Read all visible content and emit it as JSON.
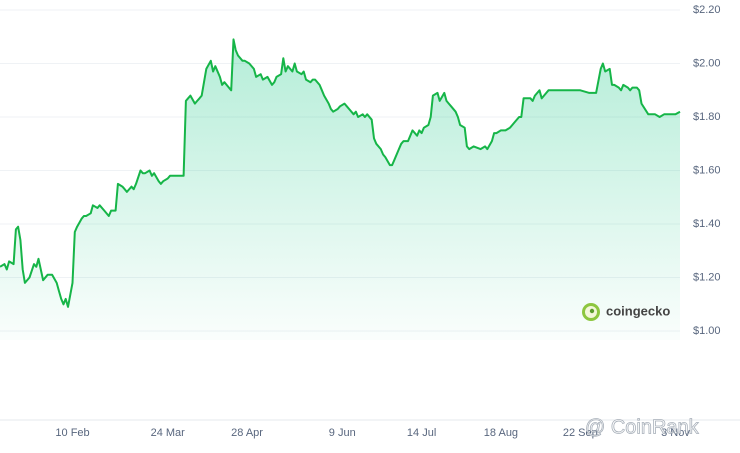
{
  "chart_data": {
    "type": "line",
    "x": [
      0,
      2,
      3,
      4,
      6,
      7,
      8,
      9,
      10,
      11,
      13,
      15,
      16,
      17,
      18,
      19,
      21,
      23,
      25,
      26,
      27,
      28,
      29,
      30,
      32,
      33,
      34,
      36,
      37,
      38,
      40,
      41,
      43,
      44,
      46,
      48,
      49,
      51,
      52,
      54,
      55,
      56,
      58,
      59,
      60,
      62,
      63,
      64,
      66,
      67,
      68,
      70,
      71,
      72,
      74,
      75,
      78,
      79,
      81,
      82,
      83,
      84,
      86,
      87,
      88,
      89,
      90,
      91,
      93,
      94,
      95,
      97,
      98,
      99,
      101,
      102,
      103,
      104,
      105,
      107,
      108,
      110,
      112,
      113,
      115,
      116,
      118,
      120,
      121,
      122,
      124,
      125,
      126,
      127,
      129,
      130,
      131,
      133,
      134,
      135,
      137,
      138,
      139,
      141,
      142,
      143,
      145,
      146,
      147,
      149,
      150,
      152,
      153,
      154,
      156,
      157,
      158,
      160,
      161,
      162,
      164,
      165,
      166,
      168,
      169,
      170,
      172,
      173,
      174,
      176,
      177,
      178,
      180,
      181,
      182,
      184,
      185,
      186,
      187,
      189,
      190,
      191,
      193,
      194,
      196,
      197,
      198,
      199,
      201,
      202,
      203,
      205,
      206,
      207,
      209,
      212,
      214,
      215,
      217,
      218,
      219,
      221,
      222,
      223,
      225,
      226,
      227,
      229,
      230,
      231,
      232,
      234,
      235,
      236,
      238,
      239,
      240,
      242,
      243,
      247,
      251,
      256,
      260,
      263,
      265,
      266,
      267,
      269,
      270,
      271,
      273,
      274,
      275,
      277,
      278,
      279,
      281,
      282,
      283,
      286,
      287,
      289,
      291,
      293,
      296,
      298,
      300
    ],
    "series": [
      {
        "color": "#16b548",
        "values": [
          1.24,
          1.25,
          1.23,
          1.26,
          1.25,
          1.38,
          1.39,
          1.34,
          1.23,
          1.18,
          1.2,
          1.25,
          1.24,
          1.27,
          1.23,
          1.19,
          1.21,
          1.21,
          1.18,
          1.15,
          1.12,
          1.1,
          1.12,
          1.09,
          1.18,
          1.37,
          1.39,
          1.42,
          1.43,
          1.43,
          1.44,
          1.47,
          1.46,
          1.47,
          1.45,
          1.43,
          1.45,
          1.45,
          1.55,
          1.54,
          1.53,
          1.52,
          1.54,
          1.53,
          1.55,
          1.6,
          1.59,
          1.59,
          1.6,
          1.58,
          1.59,
          1.56,
          1.55,
          1.56,
          1.57,
          1.58,
          1.58,
          1.58,
          1.58,
          1.86,
          1.87,
          1.88,
          1.85,
          1.86,
          1.87,
          1.88,
          1.93,
          1.98,
          2.01,
          1.97,
          1.99,
          1.95,
          1.92,
          1.93,
          1.91,
          1.9,
          2.09,
          2.05,
          2.03,
          2.01,
          2.01,
          2.0,
          1.98,
          1.95,
          1.96,
          1.94,
          1.95,
          1.92,
          1.93,
          1.95,
          1.96,
          2.02,
          1.97,
          1.99,
          1.97,
          2.0,
          1.97,
          1.96,
          1.97,
          1.94,
          1.93,
          1.94,
          1.94,
          1.92,
          1.9,
          1.88,
          1.85,
          1.83,
          1.82,
          1.83,
          1.84,
          1.85,
          1.84,
          1.83,
          1.81,
          1.82,
          1.8,
          1.81,
          1.8,
          1.81,
          1.79,
          1.72,
          1.7,
          1.68,
          1.66,
          1.65,
          1.62,
          1.62,
          1.64,
          1.68,
          1.7,
          1.71,
          1.71,
          1.73,
          1.75,
          1.73,
          1.75,
          1.74,
          1.76,
          1.77,
          1.8,
          1.88,
          1.89,
          1.86,
          1.89,
          1.86,
          1.85,
          1.84,
          1.82,
          1.8,
          1.77,
          1.76,
          1.69,
          1.68,
          1.69,
          1.68,
          1.69,
          1.68,
          1.71,
          1.74,
          1.74,
          1.75,
          1.75,
          1.75,
          1.76,
          1.77,
          1.78,
          1.8,
          1.8,
          1.87,
          1.87,
          1.87,
          1.86,
          1.88,
          1.9,
          1.87,
          1.88,
          1.9,
          1.9,
          1.9,
          1.9,
          1.9,
          1.89,
          1.89,
          1.98,
          2.0,
          1.97,
          1.98,
          1.92,
          1.92,
          1.91,
          1.9,
          1.92,
          1.91,
          1.9,
          1.91,
          1.91,
          1.9,
          1.85,
          1.81,
          1.81,
          1.81,
          1.8,
          1.81,
          1.81,
          1.81,
          1.82
        ]
      }
    ],
    "xlim": [
      0,
      300
    ],
    "xticks": [
      {
        "value": 32,
        "label": "10 Feb"
      },
      {
        "value": 74,
        "label": "24 Mar"
      },
      {
        "value": 109,
        "label": "28 Apr"
      },
      {
        "value": 151,
        "label": "9 Jun"
      },
      {
        "value": 186,
        "label": "14 Jul"
      },
      {
        "value": 221,
        "label": "18 Aug"
      },
      {
        "value": 256,
        "label": "22 Sep"
      },
      {
        "value": 298,
        "label": "3 Nov"
      }
    ],
    "ylim": [
      1.0,
      2.2
    ],
    "yticks": [
      {
        "value": 2.2,
        "label": "$2.20"
      },
      {
        "value": 2.0,
        "label": "$2.00"
      },
      {
        "value": 1.8,
        "label": "$1.80"
      },
      {
        "value": 1.6,
        "label": "$1.60"
      },
      {
        "value": 1.4,
        "label": "$1.40"
      },
      {
        "value": 1.2,
        "label": "$1.20"
      },
      {
        "value": 1.0,
        "label": "$1.00"
      }
    ],
    "grid": true,
    "annotations": [
      "coingecko",
      "@ CoinRank"
    ]
  }
}
